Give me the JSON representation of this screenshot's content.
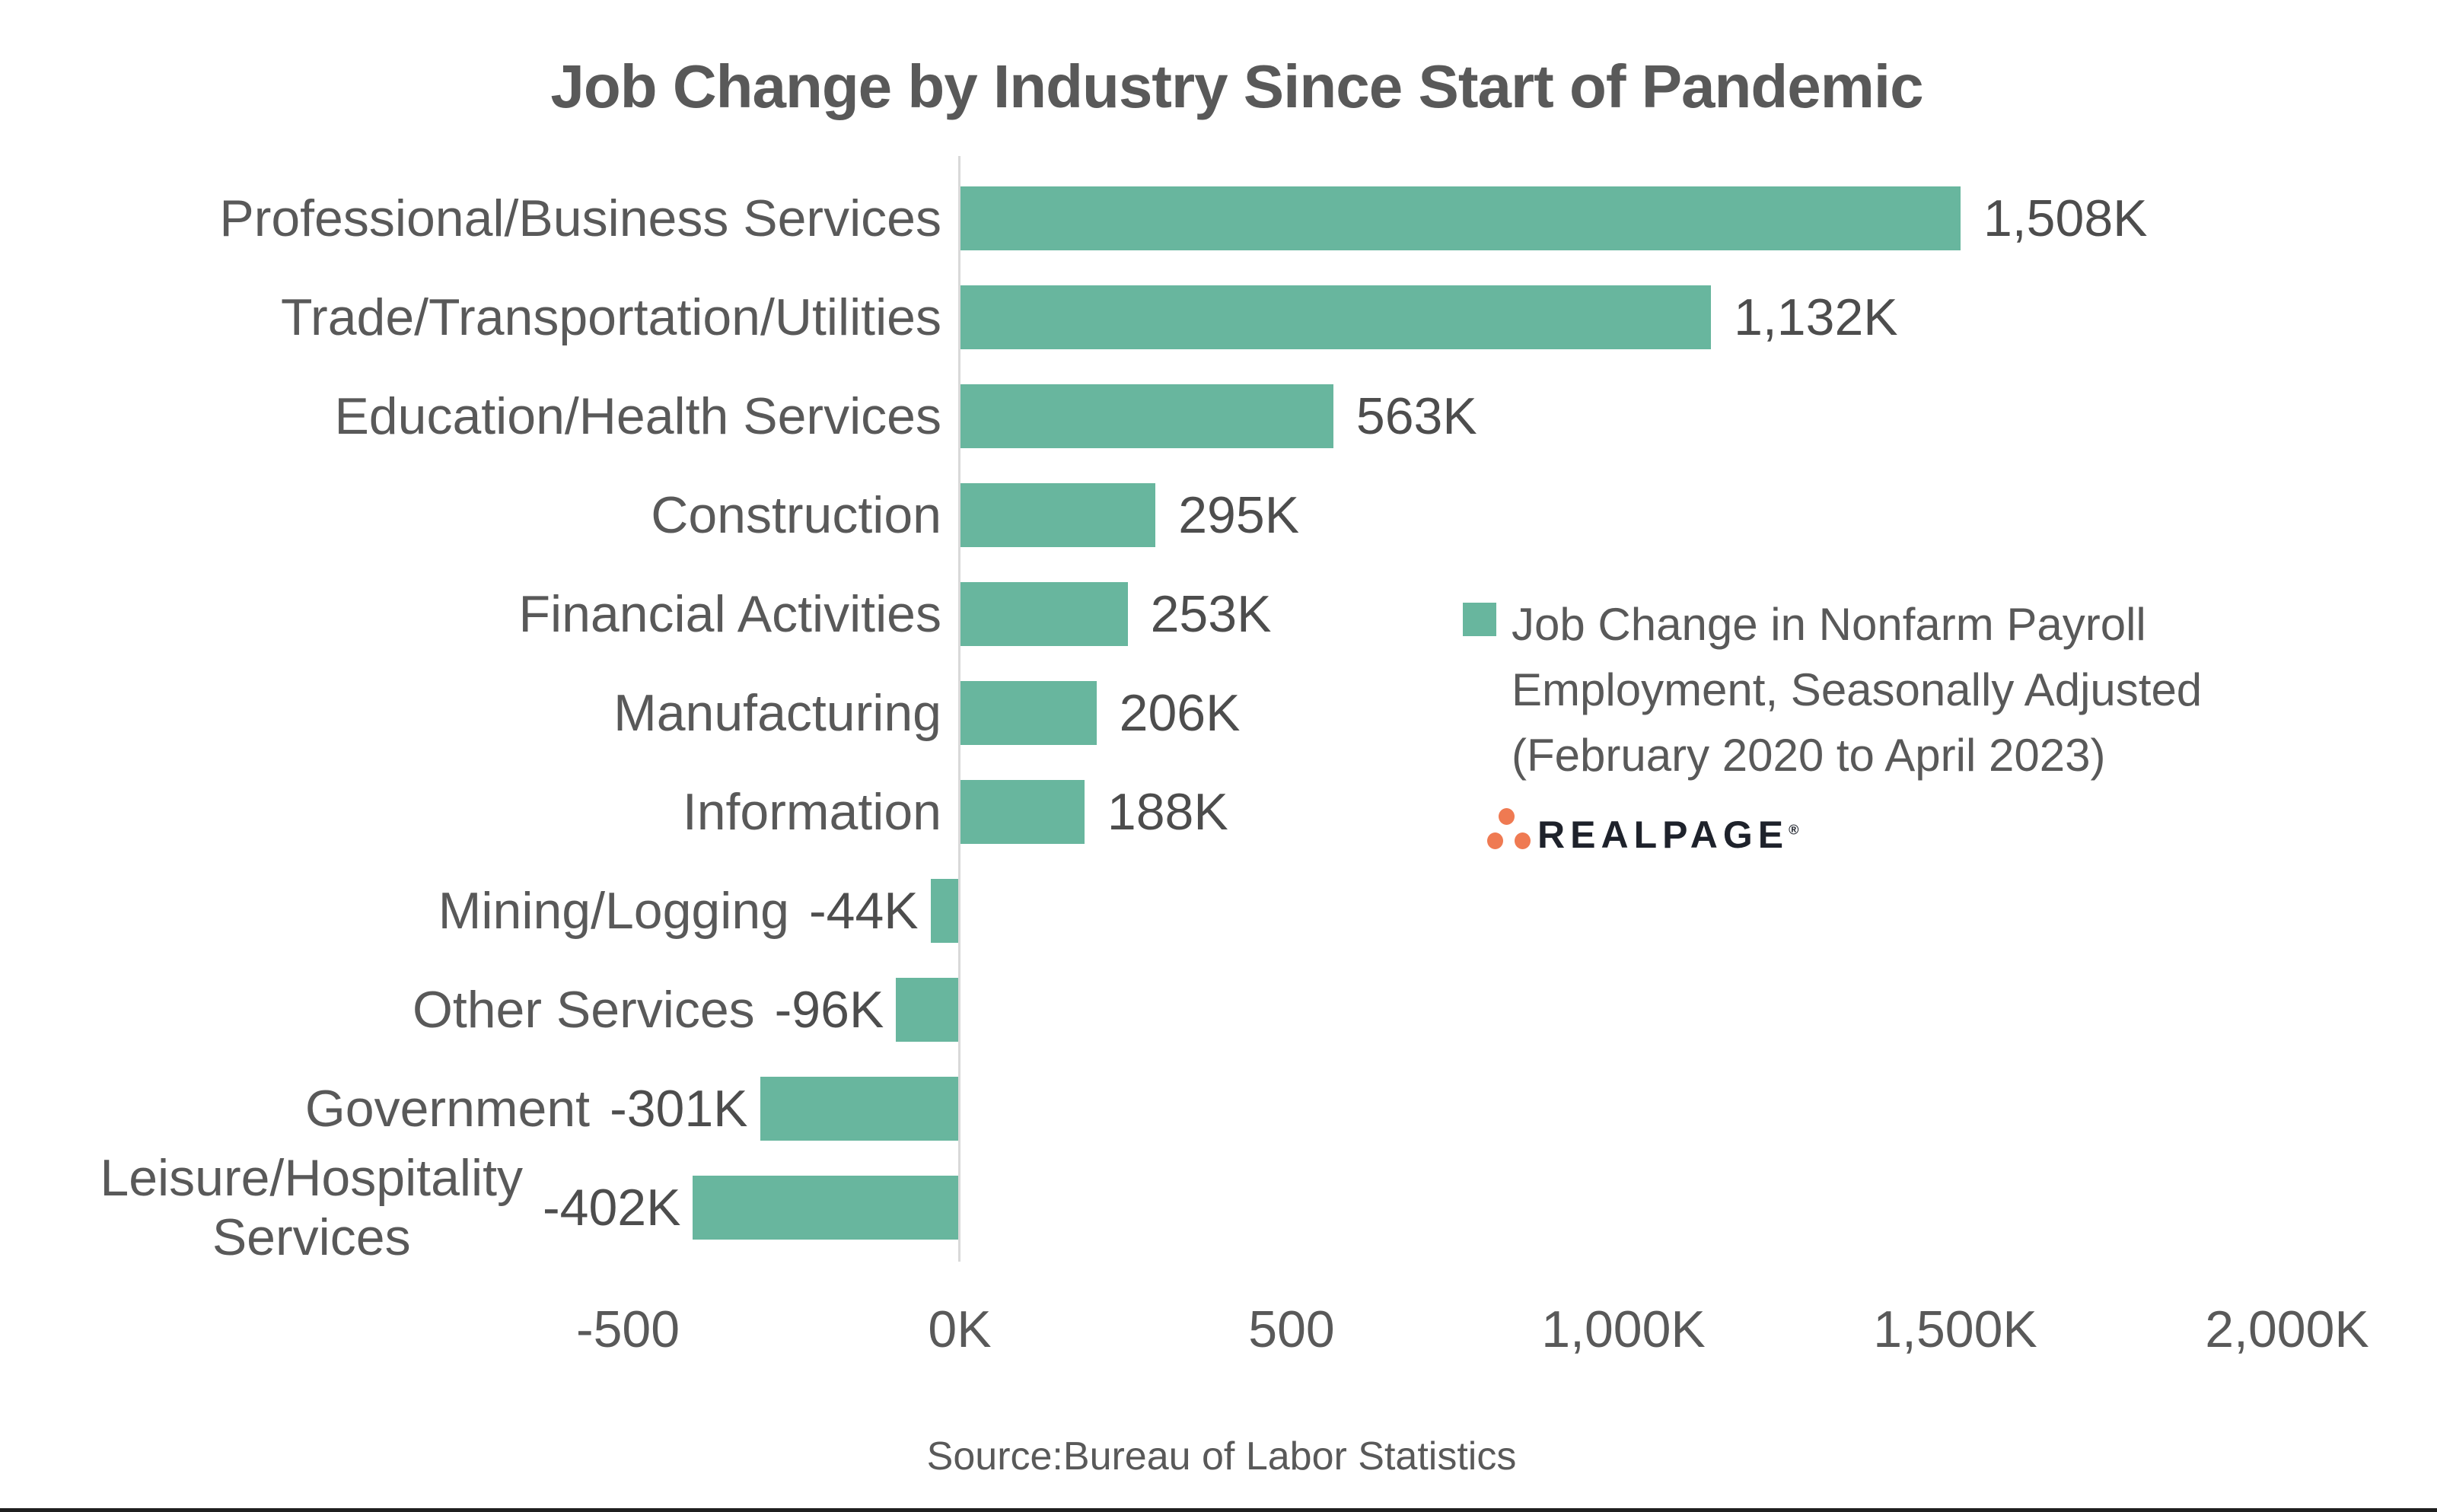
{
  "title": "Job Change by Industry Since Start of Pandemic",
  "source_note": "Source:Bureau of Labor Statistics",
  "logo": {
    "text": "REALPAGE",
    "registered_mark": "®",
    "dot_color": "#EF7A52",
    "text_color": "#1E222B"
  },
  "colors": {
    "bar": "#68B69E",
    "axis_line": "#D9D9D9",
    "text": "#595959",
    "value_text": "#4D4D4D"
  },
  "chart_data": {
    "type": "bar",
    "orientation": "horizontal",
    "title": "Job Change by Industry Since Start of Pandemic",
    "units": "thousands of jobs (K)",
    "categories": [
      "Professional/Business Services",
      "Trade/Transportation/Utilities",
      "Education/Health Services",
      "Construction",
      "Financial Activities",
      "Manufacturing",
      "Information",
      "Mining/Logging",
      "Other Services",
      "Government",
      "Leisure/Hospitality\nServices"
    ],
    "values": [
      1508,
      1132,
      563,
      295,
      253,
      206,
      188,
      -44,
      -96,
      -301,
      -402
    ],
    "value_labels": [
      "1,508K",
      "1,132K",
      "563K",
      "295K",
      "253K",
      "206K",
      "188K",
      "-44K",
      "-96K",
      "-301K",
      "-402K"
    ],
    "bar_color": "#68B69E",
    "grid": "off",
    "x_axis": {
      "range": [
        -500,
        2000
      ],
      "ticks": [
        -500,
        0,
        500,
        1000,
        1500,
        2000
      ],
      "tick_labels": [
        "-500",
        "0K",
        "500",
        "1,000K",
        "1,500K",
        "2,000K"
      ]
    },
    "legend": {
      "position": "middle-right",
      "marker_color": "#68B69E",
      "lines": [
        "Job Change in Nonfarm Payroll",
        "Employment, Seasonally Adjusted",
        "(February 2020 to April 2023)"
      ]
    }
  }
}
